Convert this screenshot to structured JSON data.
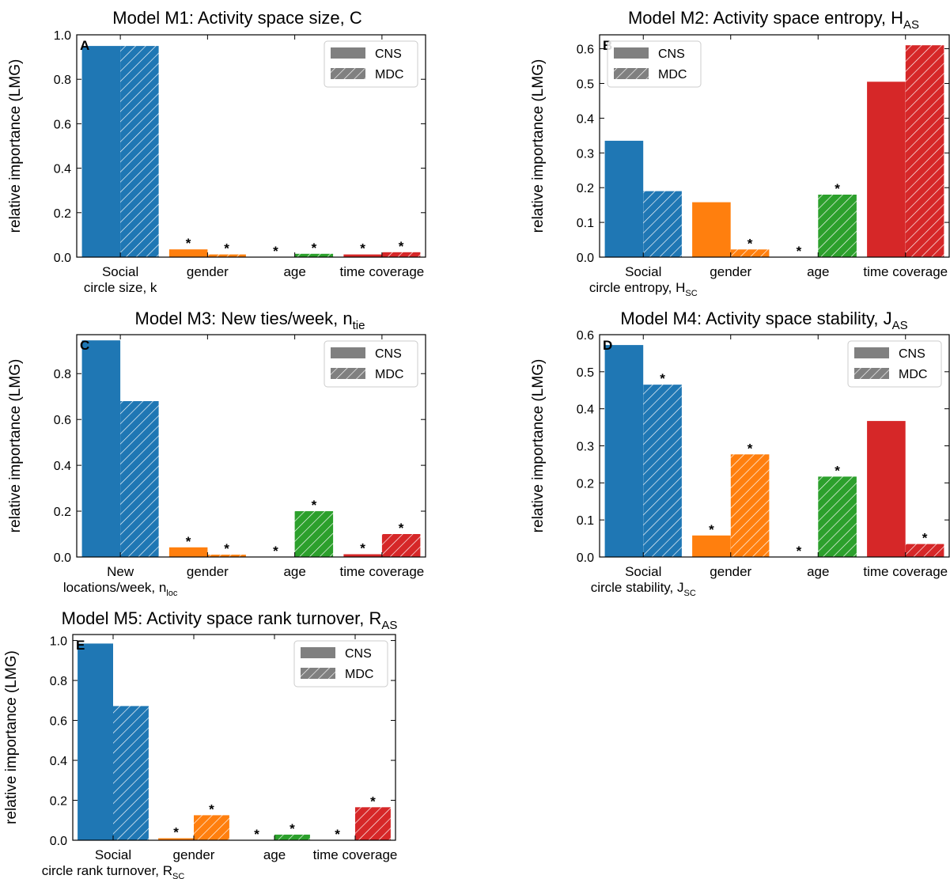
{
  "legend": {
    "solid": "CNS",
    "hatched": "MDC"
  },
  "stars": "*",
  "chart_data": [
    {
      "type": "bar",
      "panel": "A",
      "title": "Model M1: Activity space size, C",
      "ylabel": "relative importance (LMG)",
      "ylim": [
        0,
        1.0
      ],
      "yticks": [
        "0.0",
        "0.2",
        "0.4",
        "0.6",
        "0.8",
        "1.0"
      ],
      "categories": [
        "Social circle size, k",
        "gender",
        "age",
        "time coverage"
      ],
      "cat_lines": [
        [
          "Social",
          "circle size, k"
        ],
        [
          "gender"
        ],
        [
          "age"
        ],
        [
          "time coverage"
        ]
      ],
      "series": [
        {
          "name": "CNS",
          "values": [
            0.95,
            0.035,
            0.0,
            0.012
          ],
          "sig": [
            false,
            true,
            true,
            true
          ]
        },
        {
          "name": "MDC",
          "values": [
            0.95,
            0.012,
            0.015,
            0.022
          ],
          "sig": [
            false,
            true,
            true,
            true
          ]
        }
      ],
      "legend_position": "top-right"
    },
    {
      "type": "bar",
      "panel": "B",
      "title": "Model M2: Activity space entropy, H",
      "title_sub": "AS",
      "ylabel": "relative importance (LMG)",
      "ylim": [
        0,
        0.64
      ],
      "yticks": [
        "0.0",
        "0.1",
        "0.2",
        "0.3",
        "0.4",
        "0.5",
        "0.6"
      ],
      "categories": [
        "Social circle entropy, H_SC",
        "gender",
        "age",
        "time coverage"
      ],
      "cat_lines": [
        [
          "Social"
        ],
        [
          "gender"
        ],
        [
          "age"
        ],
        [
          "time coverage"
        ]
      ],
      "cat_line2": {
        "text": "circle entropy, H",
        "sub": "SC"
      },
      "series": [
        {
          "name": "CNS",
          "values": [
            0.335,
            0.158,
            0.0,
            0.505
          ],
          "sig": [
            false,
            false,
            true,
            false
          ]
        },
        {
          "name": "MDC",
          "values": [
            0.19,
            0.022,
            0.18,
            0.61
          ],
          "sig": [
            false,
            true,
            true,
            false
          ]
        }
      ],
      "legend_position": "top-left"
    },
    {
      "type": "bar",
      "panel": "C",
      "title": "Model M3: New ties/week, n",
      "title_sub": "tie",
      "ylabel": "relative importance (LMG)",
      "ylim": [
        0,
        0.97
      ],
      "yticks": [
        "0.0",
        "0.2",
        "0.4",
        "0.6",
        "0.8"
      ],
      "categories": [
        "New locations/week, n_loc",
        "gender",
        "age",
        "time coverage"
      ],
      "cat_lines": [
        [
          "New"
        ],
        [
          "gender"
        ],
        [
          "age"
        ],
        [
          "time coverage"
        ]
      ],
      "cat_line2": {
        "text": "locations/week, n",
        "sub": "loc"
      },
      "series": [
        {
          "name": "CNS",
          "values": [
            0.945,
            0.042,
            0.0,
            0.012
          ],
          "sig": [
            false,
            true,
            true,
            true
          ]
        },
        {
          "name": "MDC",
          "values": [
            0.68,
            0.01,
            0.2,
            0.1
          ],
          "sig": [
            false,
            true,
            true,
            true
          ]
        }
      ],
      "legend_position": "top-right"
    },
    {
      "type": "bar",
      "panel": "D",
      "title": "Model M4: Activity space stability, J",
      "title_sub": "AS",
      "ylabel": "relative importance (LMG)",
      "ylim": [
        0,
        0.6
      ],
      "yticks": [
        "0.0",
        "0.1",
        "0.2",
        "0.3",
        "0.4",
        "0.5",
        "0.6"
      ],
      "categories": [
        "Social circle stability, J_SC",
        "gender",
        "age",
        "time coverage"
      ],
      "cat_lines": [
        [
          "Social"
        ],
        [
          "gender"
        ],
        [
          "age"
        ],
        [
          "time coverage"
        ]
      ],
      "cat_line2": {
        "text": "circle stability, J",
        "sub": "SC"
      },
      "series": [
        {
          "name": "CNS",
          "values": [
            0.572,
            0.058,
            0.0,
            0.367
          ],
          "sig": [
            false,
            true,
            true,
            false
          ]
        },
        {
          "name": "MDC",
          "values": [
            0.465,
            0.277,
            0.217,
            0.035
          ],
          "sig": [
            true,
            true,
            true,
            true
          ]
        }
      ],
      "legend_position": "top-right"
    },
    {
      "type": "bar",
      "panel": "E",
      "title": "Model M5: Activity space rank turnover, R",
      "title_sub": "AS",
      "ylabel": "relative importance (LMG)",
      "ylim": [
        0,
        1.03
      ],
      "yticks": [
        "0.0",
        "0.2",
        "0.4",
        "0.6",
        "0.8",
        "1.0"
      ],
      "categories": [
        "Social circle rank turnover, R_SC",
        "gender",
        "age",
        "time coverage"
      ],
      "cat_lines": [
        [
          "Social"
        ],
        [
          "gender"
        ],
        [
          "age"
        ],
        [
          "time coverage"
        ]
      ],
      "cat_line2": {
        "text": "circle rank turnover, R",
        "sub": "SC"
      },
      "series": [
        {
          "name": "CNS",
          "values": [
            0.985,
            0.01,
            0.0,
            0.0
          ],
          "sig": [
            false,
            true,
            true,
            true
          ]
        },
        {
          "name": "MDC",
          "values": [
            0.672,
            0.125,
            0.028,
            0.165
          ],
          "sig": [
            false,
            true,
            true,
            true
          ]
        }
      ],
      "legend_position": "top-right"
    }
  ]
}
